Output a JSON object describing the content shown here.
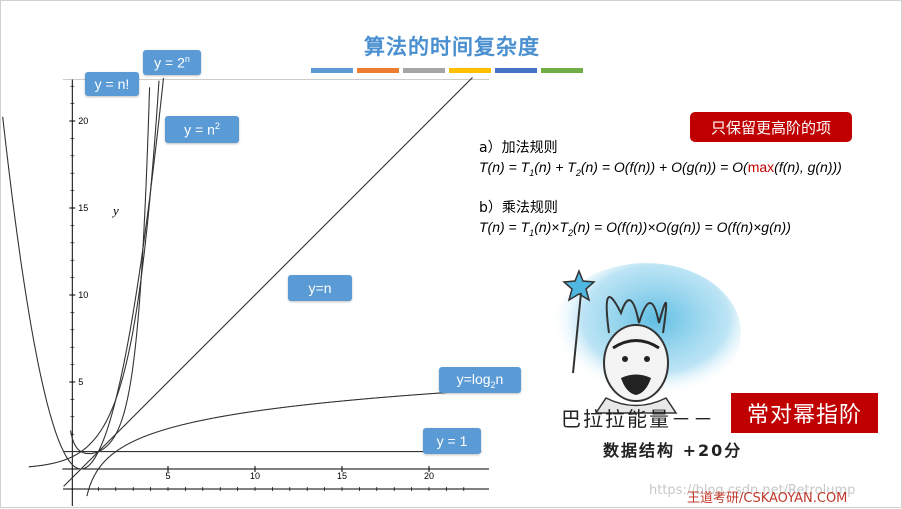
{
  "slide": {
    "title": "算法的时间复杂度",
    "accent_bars": [
      "#5b9bd5",
      "#ed7d31",
      "#a5a5a5",
      "#ffc000",
      "#4472c4",
      "#70ad47"
    ]
  },
  "callouts": {
    "factorial": "y = n!",
    "exponential_base": "y = 2",
    "exponential_sup": "n",
    "quadratic_base": "y = n",
    "quadratic_sup": "2",
    "linear": "y=n",
    "log_prefix": "y=log",
    "log_sub": "2",
    "log_suffix": "n",
    "constant": "y = 1"
  },
  "rules": {
    "a_label": "a）加法规则",
    "b_label": "b）乘法规则",
    "keep_highest": "只保留更高阶的项"
  },
  "meme": {
    "caption": "巴拉拉能量－－",
    "subcaption": "数据结构  +20分",
    "badge": "常对幂指阶"
  },
  "watermark": "https://blog.csdn.net/Retrolump",
  "footer": "王道考研/CSKAOYAN.COM",
  "chart_data": {
    "type": "line",
    "xlabel": "",
    "ylabel": "y",
    "xlim": [
      -0.5,
      23
    ],
    "ylim": [
      -2,
      22.5
    ],
    "x_ticks": [
      "5",
      "10",
      "15",
      "20"
    ],
    "y_ticks": [
      "5",
      "10",
      "15",
      "20"
    ],
    "series": [
      {
        "name": "y = n!",
        "formula": "n!"
      },
      {
        "name": "y = 2^n",
        "formula": "2^n"
      },
      {
        "name": "y = n^2",
        "formula": "n^2"
      },
      {
        "name": "y=n",
        "formula": "n"
      },
      {
        "name": "y=log2n",
        "formula": "log2(n)"
      },
      {
        "name": "y = 1",
        "formula": "1"
      }
    ]
  }
}
